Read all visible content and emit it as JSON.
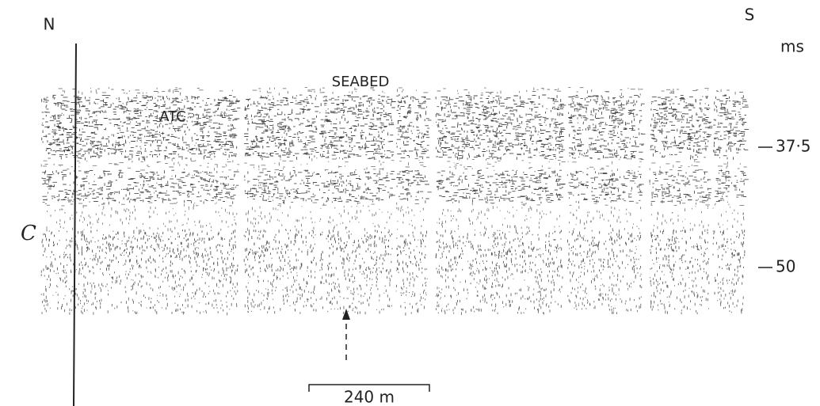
{
  "labels": {
    "north": "N",
    "south": "S",
    "unit": "ms",
    "seabed": "SEABED",
    "atc": "ATC",
    "c": "C",
    "scale": "240 m"
  },
  "depth_ticks": [
    "37·5",
    "50"
  ]
}
